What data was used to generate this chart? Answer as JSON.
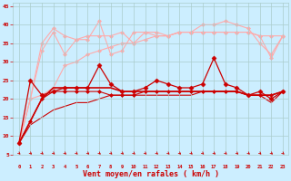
{
  "x": [
    0,
    1,
    2,
    3,
    4,
    5,
    6,
    7,
    8,
    9,
    10,
    11,
    12,
    13,
    14,
    15,
    16,
    17,
    18,
    19,
    20,
    21,
    22,
    23
  ],
  "series": [
    {
      "name": "rafales_upper",
      "color": "#ffaaaa",
      "linewidth": 0.8,
      "marker": "D",
      "markersize": 2.0,
      "zorder": 2,
      "values": [
        8,
        20,
        35,
        39,
        37,
        36,
        37,
        37,
        37,
        38,
        35,
        38,
        38,
        37,
        38,
        38,
        40,
        40,
        41,
        40,
        39,
        35,
        32,
        37
      ]
    },
    {
      "name": "rafales_lower",
      "color": "#ffaaaa",
      "linewidth": 0.8,
      "marker": "D",
      "markersize": 2.0,
      "zorder": 1,
      "values": [
        8,
        20,
        33,
        38,
        32,
        36,
        36,
        41,
        32,
        33,
        38,
        38,
        37,
        37,
        38,
        38,
        38,
        38,
        38,
        38,
        38,
        37,
        31,
        37
      ]
    },
    {
      "name": "rafales_smooth",
      "color": "#ffaaaa",
      "linewidth": 0.8,
      "marker": "D",
      "markersize": 2.0,
      "zorder": 1,
      "values": [
        8,
        20,
        21,
        23,
        29,
        30,
        32,
        33,
        34,
        35,
        35,
        36,
        37,
        37,
        38,
        38,
        38,
        38,
        38,
        38,
        38,
        37,
        37,
        37
      ]
    },
    {
      "name": "vent_max",
      "color": "#cc0000",
      "linewidth": 0.9,
      "marker": "D",
      "markersize": 2.5,
      "zorder": 4,
      "values": [
        8,
        25,
        21,
        22,
        23,
        23,
        23,
        29,
        24,
        22,
        22,
        23,
        25,
        24,
        23,
        23,
        24,
        31,
        24,
        23,
        21,
        22,
        20,
        22
      ]
    },
    {
      "name": "vent_med",
      "color": "#cc0000",
      "linewidth": 1.2,
      "marker": null,
      "markersize": 0,
      "zorder": 5,
      "values": [
        8,
        14,
        20,
        23,
        23,
        23,
        23,
        23,
        23,
        22,
        22,
        22,
        22,
        22,
        22,
        22,
        22,
        22,
        22,
        22,
        21,
        21,
        21,
        22
      ]
    },
    {
      "name": "vent_moyen",
      "color": "#cc0000",
      "linewidth": 0.8,
      "marker": "D",
      "markersize": 2.0,
      "zorder": 3,
      "values": [
        8,
        14,
        20,
        22,
        22,
        22,
        22,
        22,
        21,
        21,
        21,
        22,
        22,
        22,
        22,
        22,
        22,
        22,
        22,
        22,
        21,
        21,
        21,
        22
      ]
    },
    {
      "name": "vent_min",
      "color": "#cc0000",
      "linewidth": 0.8,
      "marker": null,
      "markersize": 0,
      "zorder": 2,
      "values": [
        8,
        13,
        15,
        17,
        18,
        19,
        19,
        20,
        21,
        21,
        21,
        21,
        21,
        21,
        21,
        21,
        22,
        22,
        22,
        22,
        21,
        21,
        19,
        22
      ]
    }
  ],
  "ylim": [
    5,
    46
  ],
  "yticks": [
    5,
    10,
    15,
    20,
    25,
    30,
    35,
    40,
    45
  ],
  "xlabel": "Vent moyen/en rafales ( km/h )",
  "xlabel_color": "#cc0000",
  "xlabel_fontsize": 6,
  "bg_color": "#cceeff",
  "grid_color": "#aacccc",
  "tick_color": "#cc0000",
  "arrow_color": "#cc0000"
}
